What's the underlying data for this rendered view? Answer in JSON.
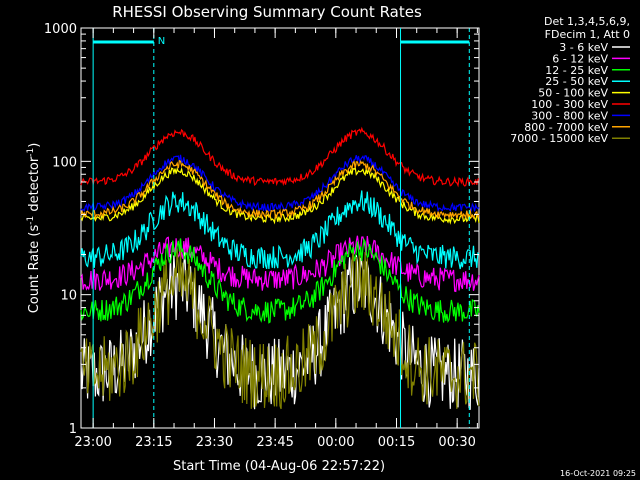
{
  "chart_data": {
    "type": "line",
    "title": "RHESSI Observing Summary Count Rates",
    "xlabel": "Start Time (04-Aug-06 22:57:22)",
    "ylabel_main": "Count Rate (s",
    "ylabel_sup1": "-1",
    "ylabel_mid": " detector",
    "ylabel_sup2": "-1",
    "ylabel_end": ")",
    "yscale": "log",
    "ylim": [
      1,
      1000
    ],
    "xlim": [
      22.95,
      0.59
    ],
    "x_ticks": [
      "23:00",
      "23:15",
      "23:30",
      "23:45",
      "00:00",
      "00:15",
      "00:30"
    ],
    "y_ticks": [
      "1",
      "10",
      "100",
      "1000"
    ],
    "legend_header": [
      "Det 1,3,4,5,6,9,",
      "FDecim 1, Att 0"
    ],
    "series": [
      {
        "name": "3 - 6 keV",
        "color": "#ffffff",
        "base": 2.5,
        "peak": 12
      },
      {
        "name": "6 - 12 keV",
        "color": "#ff00ff",
        "base": 13,
        "peak": 23
      },
      {
        "name": "12 - 25 keV",
        "color": "#00ff00",
        "base": 7.5,
        "peak": 22
      },
      {
        "name": "25 - 50 keV",
        "color": "#00ffff",
        "base": 19,
        "peak": 50
      },
      {
        "name": "50 - 100 keV",
        "color": "#ffff00",
        "base": 37,
        "peak": 85
      },
      {
        "name": "100 - 300 keV",
        "color": "#ff0000",
        "base": 70,
        "peak": 165
      },
      {
        "name": "300 - 800 keV",
        "color": "#0000ff",
        "base": 45,
        "peak": 105
      },
      {
        "name": "800 - 7000 keV",
        "color": "#ffa500",
        "base": 40,
        "peak": 95
      },
      {
        "name": "7000 - 15000 keV",
        "color": "#808000",
        "base": 2.5,
        "peak": 12
      }
    ],
    "saa_markers": [
      {
        "label": "N",
        "start": "23:00",
        "end": "23:15"
      },
      {
        "label": "",
        "start": "00:16",
        "end": "00:33"
      }
    ],
    "footer_stamp": "16-Oct-2021 09:25"
  }
}
